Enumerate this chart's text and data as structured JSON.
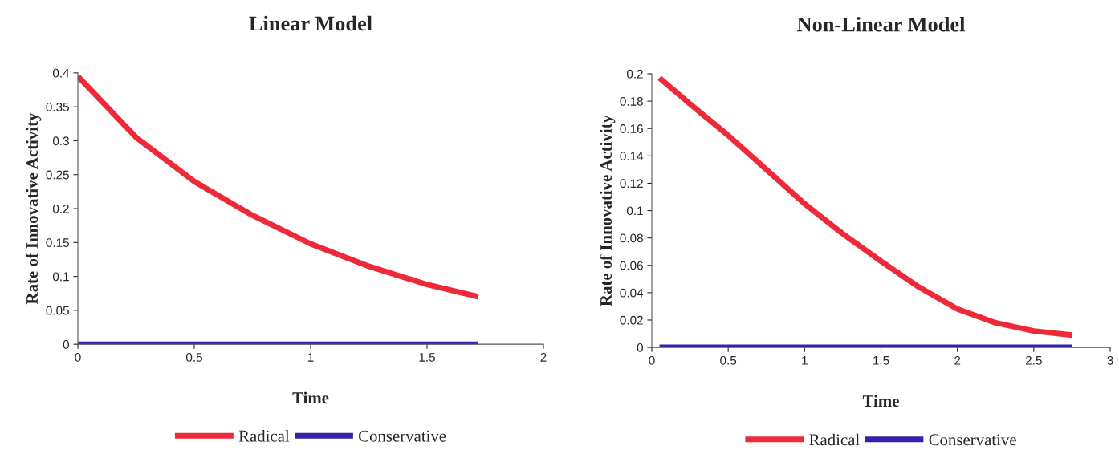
{
  "chart_data": [
    {
      "type": "line",
      "title": "Linear Model",
      "xlabel": "Time",
      "ylabel": "Rate of Innovative Activity",
      "xlim": [
        0,
        2
      ],
      "xticks": [
        0,
        0.5,
        1,
        1.5,
        2
      ],
      "ylim": [
        0,
        0.4
      ],
      "yticks": [
        0,
        0.05,
        0.1,
        0.15,
        0.2,
        0.25,
        0.3,
        0.35,
        0.4
      ],
      "grid": false,
      "legend": "bottom",
      "marker": "none",
      "line_style": "solid",
      "series": [
        {
          "name": "Radical",
          "color": "#ee2a3a",
          "x": [
            0,
            0.25,
            0.5,
            0.75,
            1,
            1.25,
            1.5,
            1.72
          ],
          "values": [
            0.395,
            0.305,
            0.24,
            0.19,
            0.148,
            0.115,
            0.088,
            0.07
          ]
        },
        {
          "name": "Conservative",
          "color": "#3422a8",
          "x": [
            0,
            1.72
          ],
          "values": [
            0,
            0
          ]
        }
      ]
    },
    {
      "type": "line",
      "title": "Non-Linear Model",
      "xlabel": "Time",
      "ylabel": "Rate of Innovative Activity",
      "xlim": [
        0,
        3
      ],
      "xticks": [
        0,
        0.5,
        1,
        1.5,
        2,
        2.5,
        3
      ],
      "ylim": [
        0,
        0.2
      ],
      "yticks": [
        0,
        0.02,
        0.04,
        0.06,
        0.08,
        0.1,
        0.12,
        0.14,
        0.16,
        0.18,
        0.2
      ],
      "grid": false,
      "legend": "bottom",
      "marker": "none",
      "line_style": "solid",
      "series": [
        {
          "name": "Radical",
          "color": "#ee2a3a",
          "x": [
            0.05,
            0.25,
            0.5,
            0.75,
            1,
            1.25,
            1.5,
            1.75,
            2,
            2.25,
            2.5,
            2.75
          ],
          "values": [
            0.197,
            0.178,
            0.155,
            0.13,
            0.105,
            0.083,
            0.063,
            0.044,
            0.028,
            0.018,
            0.012,
            0.009
          ]
        },
        {
          "name": "Conservative",
          "color": "#3422a8",
          "x": [
            0.05,
            2.75
          ],
          "values": [
            0,
            0
          ]
        }
      ]
    }
  ]
}
